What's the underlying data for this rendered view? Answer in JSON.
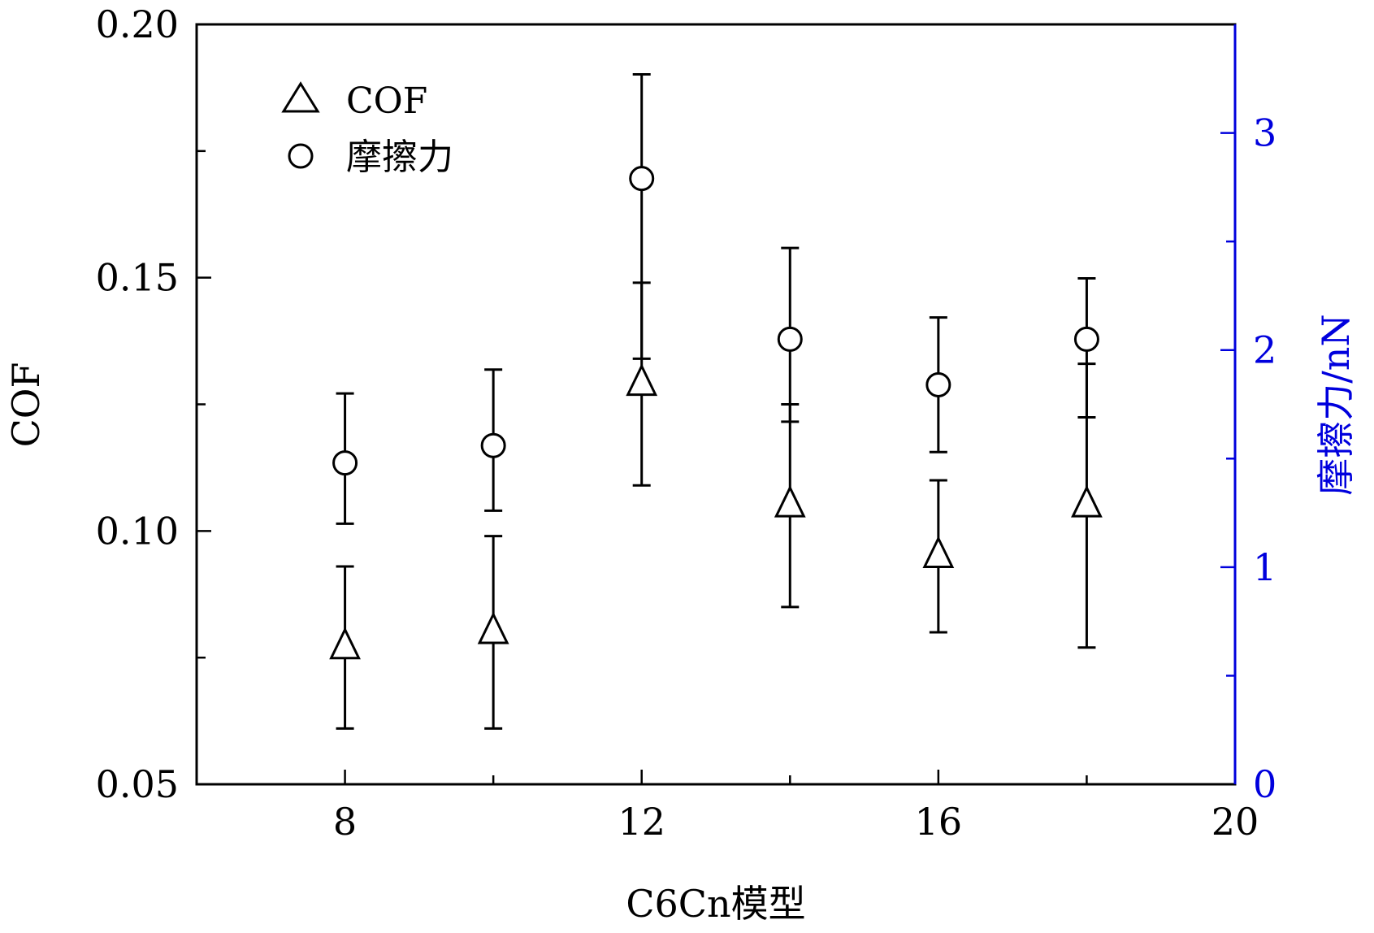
{
  "colors": {
    "axis": "#000000",
    "right_axis": "#0000dd",
    "marker": "#000000",
    "background": "#ffffff"
  },
  "chart_data": {
    "type": "scatter",
    "xlabel": "C6Cn模型",
    "ylabel": "COF",
    "ylabel_right": "摩擦力/nN",
    "xlim": [
      6,
      20
    ],
    "ylim": [
      0.05,
      0.2
    ],
    "ylim_right": [
      0,
      3.5
    ],
    "x_ticks": [
      8,
      12,
      16,
      20
    ],
    "x_minor_ticks": [
      10,
      14,
      18
    ],
    "y_ticks": [
      0.05,
      0.1,
      0.15,
      0.2
    ],
    "y_tick_labels": [
      "0.05",
      "0.10",
      "0.15",
      "0.20"
    ],
    "y_minor_ticks": [
      0.075,
      0.125,
      0.175
    ],
    "y_right_ticks": [
      0,
      1,
      2,
      3
    ],
    "y_right_minor_ticks": [
      0.5,
      1.5,
      2.5
    ],
    "legend_position": "top-left",
    "grid": false,
    "series": [
      {
        "name": "COF",
        "marker": "triangle",
        "axis": "left",
        "x": [
          8,
          10,
          12,
          14,
          16,
          18
        ],
        "y": [
          0.077,
          0.08,
          0.129,
          0.105,
          0.095,
          0.105
        ],
        "err_low": [
          0.061,
          0.061,
          0.109,
          0.085,
          0.08,
          0.077
        ],
        "err_high": [
          0.093,
          0.099,
          0.149,
          0.125,
          0.11,
          0.133
        ]
      },
      {
        "name": "摩擦力",
        "marker": "circle",
        "axis": "right",
        "x": [
          8,
          10,
          12,
          14,
          16,
          18
        ],
        "y": [
          1.48,
          1.56,
          2.79,
          2.05,
          1.84,
          2.05
        ],
        "err_low": [
          1.2,
          1.26,
          1.96,
          1.67,
          1.53,
          1.69
        ],
        "err_high": [
          1.8,
          1.91,
          3.27,
          2.47,
          2.15,
          2.33
        ]
      }
    ]
  }
}
